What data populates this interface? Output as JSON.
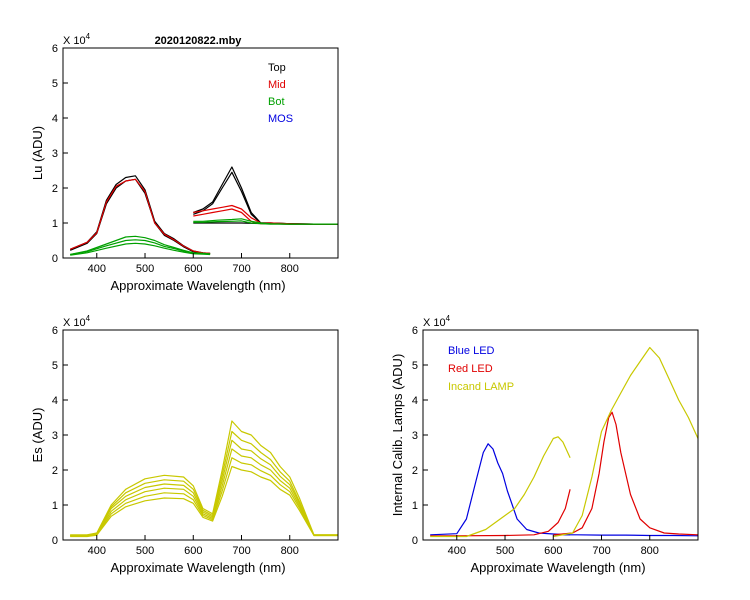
{
  "figure_title": "2020120822.mby",
  "chart_data": [
    {
      "id": "lu",
      "type": "line",
      "title": "2020120822.mby",
      "xlabel": "Approximate Wavelength (nm)",
      "ylabel": "Lu (ADU)",
      "exponent_label": "X 10",
      "exponent": "4",
      "xlim": [
        330,
        900
      ],
      "ylim": [
        0,
        6
      ],
      "xticks": [
        400,
        500,
        600,
        700,
        800
      ],
      "yticks": [
        0,
        1,
        2,
        3,
        4,
        5,
        6
      ],
      "legend": [
        {
          "label": "Top",
          "color": "#000000"
        },
        {
          "label": "Mid",
          "color": "#e00000"
        },
        {
          "label": "Bot",
          "color": "#00a000"
        },
        {
          "label": "MOS",
          "color": "#0000e0"
        }
      ],
      "series": [
        {
          "name": "Top 1",
          "color": "#000000",
          "x": [
            345,
            380,
            400,
            420,
            440,
            460,
            480,
            500,
            520,
            540,
            560,
            580,
            600,
            620,
            635
          ],
          "y": [
            0.25,
            0.45,
            0.75,
            1.65,
            2.1,
            2.3,
            2.35,
            1.95,
            1.05,
            0.7,
            0.55,
            0.35,
            0.2,
            0.15,
            0.13
          ]
        },
        {
          "name": "Top 2",
          "color": "#000000",
          "x": [
            345,
            380,
            400,
            420,
            440,
            460,
            480,
            500,
            520,
            540,
            560,
            580,
            600,
            620,
            635
          ],
          "y": [
            0.22,
            0.42,
            0.7,
            1.55,
            2.0,
            2.2,
            2.25,
            1.85,
            1.0,
            0.65,
            0.5,
            0.32,
            0.18,
            0.14,
            0.12
          ]
        },
        {
          "name": "Top 3",
          "color": "#000000",
          "x": [
            600,
            620,
            640,
            660,
            680,
            700,
            720,
            740,
            760,
            800,
            850,
            900
          ],
          "y": [
            1.3,
            1.4,
            1.6,
            2.1,
            2.6,
            2.0,
            1.3,
            1.0,
            1.0,
            0.98,
            0.97,
            0.97
          ]
        },
        {
          "name": "Top 4",
          "color": "#000000",
          "x": [
            600,
            620,
            640,
            660,
            680,
            700,
            720,
            740,
            760,
            800,
            850,
            900
          ],
          "y": [
            1.25,
            1.35,
            1.55,
            2.0,
            2.45,
            1.9,
            1.25,
            1.0,
            1.0,
            0.98,
            0.97,
            0.97
          ]
        },
        {
          "name": "Top 5",
          "color": "#000000",
          "x": [
            600,
            650,
            700,
            750,
            800,
            850,
            900
          ],
          "y": [
            1.0,
            1.0,
            1.0,
            0.98,
            0.97,
            0.97,
            0.97
          ]
        },
        {
          "name": "Mid 1",
          "color": "#e00000",
          "x": [
            345,
            380,
            400,
            420,
            440,
            460,
            480,
            500,
            520,
            540,
            560,
            580,
            600,
            620,
            635
          ],
          "y": [
            0.25,
            0.45,
            0.72,
            1.6,
            2.05,
            2.2,
            2.25,
            1.9,
            1.0,
            0.68,
            0.52,
            0.34,
            0.2,
            0.15,
            0.13
          ]
        },
        {
          "name": "Mid 2",
          "color": "#e00000",
          "x": [
            600,
            620,
            640,
            660,
            680,
            700,
            720,
            740,
            760,
            800,
            850,
            900
          ],
          "y": [
            1.3,
            1.35,
            1.4,
            1.45,
            1.5,
            1.4,
            1.15,
            1.0,
            1.0,
            0.98,
            0.97,
            0.97
          ]
        },
        {
          "name": "Mid 3",
          "color": "#e00000",
          "x": [
            600,
            620,
            640,
            660,
            680,
            700,
            720,
            740,
            760,
            800,
            850,
            900
          ],
          "y": [
            1.2,
            1.25,
            1.3,
            1.35,
            1.4,
            1.3,
            1.05,
            0.98,
            0.98,
            0.97,
            0.97,
            0.97
          ]
        },
        {
          "name": "Bot 1",
          "color": "#00a000",
          "x": [
            345,
            380,
            420,
            460,
            480,
            500,
            520,
            540,
            560,
            580,
            600,
            620,
            635
          ],
          "y": [
            0.1,
            0.2,
            0.4,
            0.6,
            0.62,
            0.58,
            0.5,
            0.38,
            0.3,
            0.22,
            0.15,
            0.13,
            0.12
          ]
        },
        {
          "name": "Bot 2",
          "color": "#00a000",
          "x": [
            345,
            380,
            420,
            460,
            480,
            500,
            520,
            540,
            560,
            580,
            600,
            620,
            635
          ],
          "y": [
            0.1,
            0.18,
            0.35,
            0.5,
            0.52,
            0.5,
            0.43,
            0.33,
            0.27,
            0.2,
            0.14,
            0.12,
            0.11
          ]
        },
        {
          "name": "Bot 3",
          "color": "#00a000",
          "x": [
            345,
            380,
            420,
            460,
            480,
            500,
            520,
            540,
            560,
            580,
            600,
            620,
            635
          ],
          "y": [
            0.08,
            0.15,
            0.28,
            0.4,
            0.42,
            0.4,
            0.35,
            0.28,
            0.22,
            0.17,
            0.12,
            0.11,
            0.1
          ]
        },
        {
          "name": "Bot 4",
          "color": "#00a000",
          "x": [
            600,
            620,
            650,
            680,
            700,
            720,
            740,
            760,
            800,
            850,
            900
          ],
          "y": [
            1.05,
            1.05,
            1.08,
            1.1,
            1.12,
            1.05,
            1.0,
            0.98,
            0.97,
            0.97,
            0.97
          ]
        },
        {
          "name": "Bot 5",
          "color": "#00a000",
          "x": [
            600,
            620,
            650,
            680,
            700,
            720,
            740,
            760,
            800,
            850,
            900
          ],
          "y": [
            1.02,
            1.02,
            1.04,
            1.05,
            1.06,
            1.0,
            0.98,
            0.97,
            0.97,
            0.97,
            0.97
          ]
        }
      ]
    },
    {
      "id": "es",
      "type": "line",
      "title": "",
      "xlabel": "Approximate Wavelength (nm)",
      "ylabel": "Es  (ADU)",
      "exponent_label": "X 10",
      "exponent": "4",
      "xlim": [
        330,
        900
      ],
      "ylim": [
        0,
        6
      ],
      "xticks": [
        400,
        500,
        600,
        700,
        800
      ],
      "yticks": [
        0,
        1,
        2,
        3,
        4,
        5,
        6
      ],
      "legend": [],
      "series": [
        {
          "name": "Es 1",
          "color": "#c8c800",
          "x": [
            345,
            380,
            400,
            430,
            460,
            500,
            540,
            580,
            600,
            620,
            640,
            660,
            680,
            700,
            720,
            740,
            760,
            780,
            800,
            820,
            850,
            880,
            900
          ],
          "y": [
            0.15,
            0.15,
            0.2,
            1.0,
            1.45,
            1.75,
            1.85,
            1.8,
            1.55,
            0.9,
            0.75,
            2.0,
            3.4,
            3.1,
            3.0,
            2.7,
            2.5,
            2.1,
            1.8,
            1.2,
            0.15,
            0.15,
            0.15
          ]
        },
        {
          "name": "Es 2",
          "color": "#c8c800",
          "x": [
            345,
            380,
            400,
            430,
            460,
            500,
            540,
            580,
            600,
            620,
            640,
            660,
            680,
            700,
            720,
            740,
            760,
            780,
            800,
            820,
            850,
            880,
            900
          ],
          "y": [
            0.14,
            0.14,
            0.19,
            0.95,
            1.35,
            1.62,
            1.72,
            1.68,
            1.45,
            0.85,
            0.7,
            1.85,
            3.1,
            2.85,
            2.75,
            2.5,
            2.3,
            1.95,
            1.68,
            1.1,
            0.15,
            0.15,
            0.15
          ]
        },
        {
          "name": "Es 3",
          "color": "#c8c800",
          "x": [
            345,
            380,
            400,
            430,
            460,
            500,
            540,
            580,
            600,
            620,
            640,
            660,
            680,
            700,
            720,
            740,
            760,
            780,
            800,
            820,
            850,
            880,
            900
          ],
          "y": [
            0.13,
            0.13,
            0.18,
            0.9,
            1.25,
            1.5,
            1.6,
            1.56,
            1.35,
            0.8,
            0.66,
            1.7,
            2.85,
            2.6,
            2.55,
            2.32,
            2.15,
            1.82,
            1.58,
            1.05,
            0.14,
            0.14,
            0.14
          ]
        },
        {
          "name": "Es 4",
          "color": "#c8c800",
          "x": [
            345,
            380,
            400,
            430,
            460,
            500,
            540,
            580,
            600,
            620,
            640,
            660,
            680,
            700,
            720,
            740,
            760,
            780,
            800,
            820,
            850,
            880,
            900
          ],
          "y": [
            0.12,
            0.12,
            0.17,
            0.82,
            1.15,
            1.38,
            1.48,
            1.45,
            1.25,
            0.75,
            0.62,
            1.55,
            2.6,
            2.4,
            2.35,
            2.15,
            2.0,
            1.7,
            1.48,
            0.98,
            0.14,
            0.14,
            0.14
          ]
        },
        {
          "name": "Es 5",
          "color": "#c8c800",
          "x": [
            345,
            380,
            400,
            430,
            460,
            500,
            540,
            580,
            600,
            620,
            640,
            660,
            680,
            700,
            720,
            740,
            760,
            780,
            800,
            820,
            850,
            880,
            900
          ],
          "y": [
            0.11,
            0.11,
            0.15,
            0.75,
            1.05,
            1.25,
            1.35,
            1.32,
            1.15,
            0.7,
            0.58,
            1.4,
            2.35,
            2.2,
            2.15,
            1.98,
            1.85,
            1.58,
            1.38,
            0.92,
            0.13,
            0.13,
            0.13
          ]
        },
        {
          "name": "Es 6",
          "color": "#c8c800",
          "x": [
            345,
            380,
            400,
            430,
            460,
            500,
            540,
            580,
            600,
            620,
            640,
            660,
            680,
            700,
            720,
            740,
            760,
            780,
            800,
            820,
            850,
            880,
            900
          ],
          "y": [
            0.1,
            0.1,
            0.14,
            0.68,
            0.95,
            1.12,
            1.2,
            1.18,
            1.05,
            0.65,
            0.54,
            1.25,
            2.1,
            2.0,
            1.95,
            1.8,
            1.7,
            1.45,
            1.28,
            0.85,
            0.13,
            0.13,
            0.13
          ]
        }
      ]
    },
    {
      "id": "lamps",
      "type": "line",
      "title": "",
      "xlabel": "Approximate Wavelength (nm)",
      "ylabel": "Internal Calib. Lamps  (ADU)",
      "exponent_label": "X 10",
      "exponent": "4",
      "xlim": [
        330,
        900
      ],
      "ylim": [
        0,
        6
      ],
      "xticks": [
        400,
        500,
        600,
        700,
        800
      ],
      "yticks": [
        0,
        1,
        2,
        3,
        4,
        5,
        6
      ],
      "legend": [
        {
          "label": "Blue LED",
          "color": "#0000e0"
        },
        {
          "label": "Red LED",
          "color": "#e00000"
        },
        {
          "label": "Incand LAMP",
          "color": "#c8c800"
        }
      ],
      "series": [
        {
          "name": "Blue LED 1",
          "color": "#0000e0",
          "x": [
            345,
            400,
            420,
            440,
            455,
            465,
            475,
            485,
            495,
            505,
            515,
            525,
            545,
            570,
            600,
            635
          ],
          "y": [
            0.15,
            0.18,
            0.6,
            1.7,
            2.5,
            2.75,
            2.6,
            2.2,
            1.9,
            1.4,
            1.0,
            0.6,
            0.3,
            0.2,
            0.17,
            0.15
          ]
        },
        {
          "name": "Blue LED 2",
          "color": "#0000e0",
          "x": [
            600,
            650,
            700,
            750,
            800,
            850,
            900
          ],
          "y": [
            0.15,
            0.15,
            0.14,
            0.14,
            0.13,
            0.13,
            0.12
          ]
        },
        {
          "name": "Red LED 1",
          "color": "#e00000",
          "x": [
            345,
            400,
            500,
            560,
            590,
            610,
            625,
            635
          ],
          "y": [
            0.12,
            0.12,
            0.13,
            0.15,
            0.25,
            0.5,
            0.9,
            1.45
          ]
        },
        {
          "name": "Red LED 2",
          "color": "#e00000",
          "x": [
            600,
            640,
            660,
            680,
            695,
            705,
            715,
            722,
            730,
            740,
            760,
            780,
            800,
            830,
            860,
            900
          ],
          "y": [
            0.15,
            0.2,
            0.35,
            0.9,
            1.9,
            2.8,
            3.5,
            3.65,
            3.3,
            2.5,
            1.3,
            0.6,
            0.35,
            0.2,
            0.17,
            0.15
          ]
        },
        {
          "name": "Incand 1",
          "color": "#c8c800",
          "x": [
            345,
            420,
            460,
            490,
            520,
            540,
            560,
            580,
            600,
            610,
            620,
            630,
            635
          ],
          "y": [
            0.1,
            0.1,
            0.3,
            0.6,
            0.9,
            1.3,
            1.8,
            2.4,
            2.9,
            2.95,
            2.8,
            2.5,
            2.35
          ]
        },
        {
          "name": "Incand 2",
          "color": "#c8c800",
          "x": [
            600,
            640,
            660,
            680,
            700,
            720,
            740,
            760,
            780,
            800,
            820,
            840,
            860,
            880,
            900
          ],
          "y": [
            0.1,
            0.2,
            0.7,
            1.8,
            3.1,
            3.7,
            4.2,
            4.7,
            5.1,
            5.5,
            5.2,
            4.6,
            4.0,
            3.5,
            2.9
          ]
        }
      ]
    }
  ]
}
